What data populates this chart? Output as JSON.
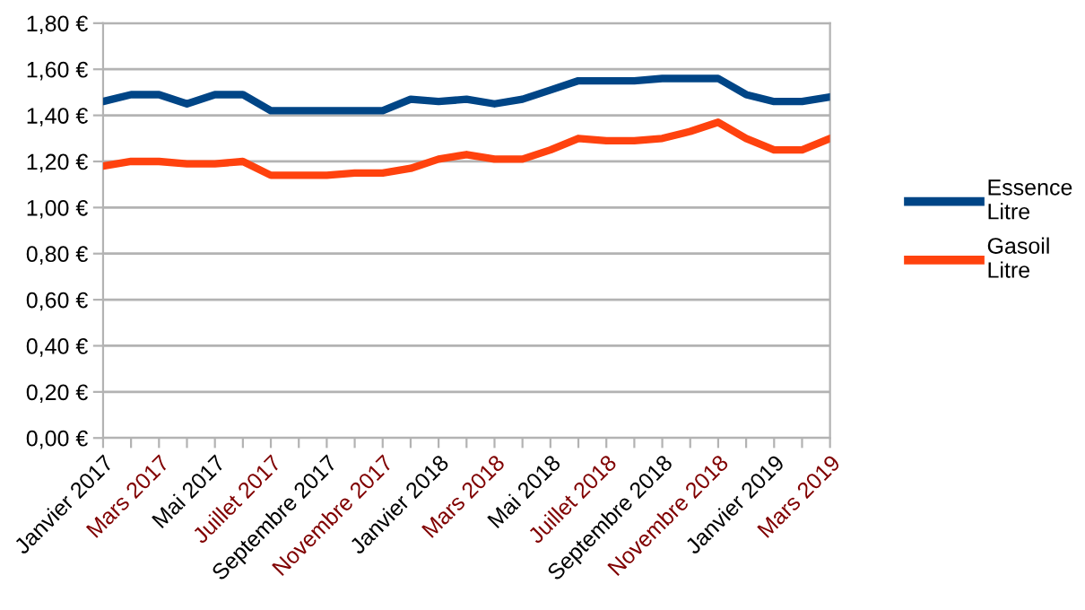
{
  "chart_data": {
    "type": "line",
    "categories": [
      "Janvier 2017",
      null,
      "Mars 2017",
      null,
      "Mai 2017",
      null,
      "Juillet 2017",
      null,
      "Septembre 2017",
      null,
      "Novembre 2017",
      null,
      "Janvier 2018",
      null,
      "Mars 2018",
      null,
      "Mai 2018",
      null,
      "Juillet 2018",
      null,
      "Septembre 2018",
      null,
      "Novembre 2018",
      null,
      "Janvier 2019",
      null,
      "Mars 2019"
    ],
    "series": [
      {
        "name": "Essence\nLitre",
        "color": "#004586",
        "values": [
          1.46,
          1.49,
          1.49,
          1.45,
          1.49,
          1.49,
          1.42,
          1.42,
          1.42,
          1.42,
          1.42,
          1.47,
          1.46,
          1.47,
          1.45,
          1.47,
          1.51,
          1.55,
          1.55,
          1.55,
          1.56,
          1.56,
          1.56,
          1.49,
          1.46,
          1.46,
          1.48
        ]
      },
      {
        "name": "Gasoil\nLitre",
        "color": "#ff420e",
        "values": [
          1.18,
          1.2,
          1.2,
          1.19,
          1.19,
          1.2,
          1.14,
          1.14,
          1.14,
          1.15,
          1.15,
          1.17,
          1.21,
          1.23,
          1.21,
          1.21,
          1.25,
          1.3,
          1.29,
          1.29,
          1.3,
          1.33,
          1.37,
          1.3,
          1.25,
          1.25,
          1.3
        ]
      }
    ],
    "ylim": [
      0,
      1.8
    ],
    "yticks": [
      {
        "value": 0,
        "label": "0,00 €"
      },
      {
        "value": 0.2,
        "label": "0,20 €"
      },
      {
        "value": 0.4,
        "label": "0,40 €"
      },
      {
        "value": 0.6,
        "label": "0,60 €"
      },
      {
        "value": 0.8,
        "label": "0,80 €"
      },
      {
        "value": 1.0,
        "label": "1,00 €"
      },
      {
        "value": 1.2,
        "label": "1,20 €"
      },
      {
        "value": 1.4,
        "label": "1,40 €"
      },
      {
        "value": 1.6,
        "label": "1,60 €"
      },
      {
        "value": 1.8,
        "label": "1,80 €"
      }
    ],
    "grid": "y",
    "legend": "right",
    "marker": "none",
    "line_style": "solid"
  }
}
